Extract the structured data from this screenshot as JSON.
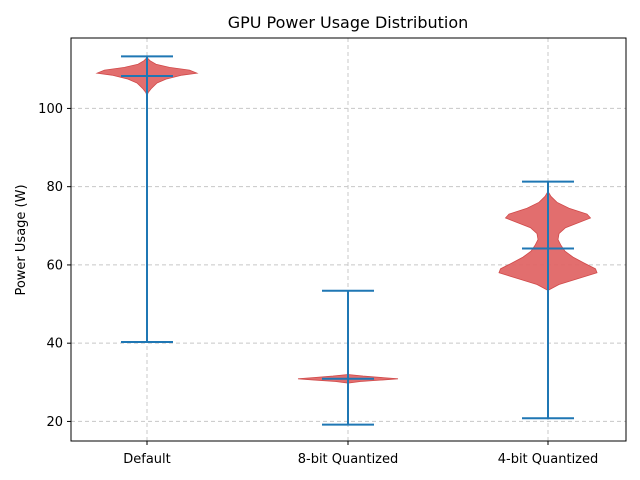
{
  "chart_data": {
    "type": "violin",
    "title": "GPU Power Usage Distribution",
    "xlabel": "",
    "ylabel": "Power Usage (W)",
    "categories": [
      "Default",
      "8-bit Quantized",
      "4-bit Quantized"
    ],
    "ylim": [
      15,
      118
    ],
    "yticks": [
      20,
      40,
      60,
      80,
      100
    ],
    "grid": true,
    "colors": {
      "violin_fill": "#e06666",
      "violin_edge": "#d04a4a",
      "lines": "#1f77b4",
      "grid": "#c8c8c8",
      "axes": "#000000"
    },
    "series": [
      {
        "category": "Default",
        "min": 40.3,
        "max": 113.3,
        "median": 108.3,
        "density": [
          [
            103.0,
            0.0
          ],
          [
            104.0,
            0.02
          ],
          [
            105.0,
            0.08
          ],
          [
            106.5,
            0.2
          ],
          [
            107.5,
            0.38
          ],
          [
            108.5,
            0.7
          ],
          [
            109.0,
            1.0
          ],
          [
            109.8,
            0.85
          ],
          [
            110.5,
            0.45
          ],
          [
            111.3,
            0.18
          ],
          [
            112.2,
            0.06
          ],
          [
            113.0,
            0.0
          ]
        ]
      },
      {
        "category": "8-bit Quantized",
        "min": 19.2,
        "max": 53.4,
        "median": 30.9,
        "density": [
          [
            29.8,
            0.0
          ],
          [
            30.2,
            0.25
          ],
          [
            30.6,
            0.7
          ],
          [
            30.9,
            1.0
          ],
          [
            31.2,
            0.7
          ],
          [
            31.6,
            0.3
          ],
          [
            32.0,
            0.0
          ]
        ]
      },
      {
        "category": "4-bit Quantized",
        "min": 20.8,
        "max": 81.3,
        "median": 64.2,
        "density": [
          [
            53.5,
            0.0
          ],
          [
            55.0,
            0.22
          ],
          [
            56.5,
            0.6
          ],
          [
            58.0,
            0.98
          ],
          [
            59.0,
            0.95
          ],
          [
            60.5,
            0.72
          ],
          [
            62.0,
            0.5
          ],
          [
            63.5,
            0.34
          ],
          [
            65.0,
            0.26
          ],
          [
            66.5,
            0.2
          ],
          [
            68.0,
            0.22
          ],
          [
            69.5,
            0.35
          ],
          [
            71.0,
            0.65
          ],
          [
            72.0,
            0.85
          ],
          [
            73.0,
            0.78
          ],
          [
            74.5,
            0.42
          ],
          [
            76.0,
            0.18
          ],
          [
            77.5,
            0.06
          ],
          [
            78.8,
            0.0
          ]
        ]
      }
    ]
  }
}
